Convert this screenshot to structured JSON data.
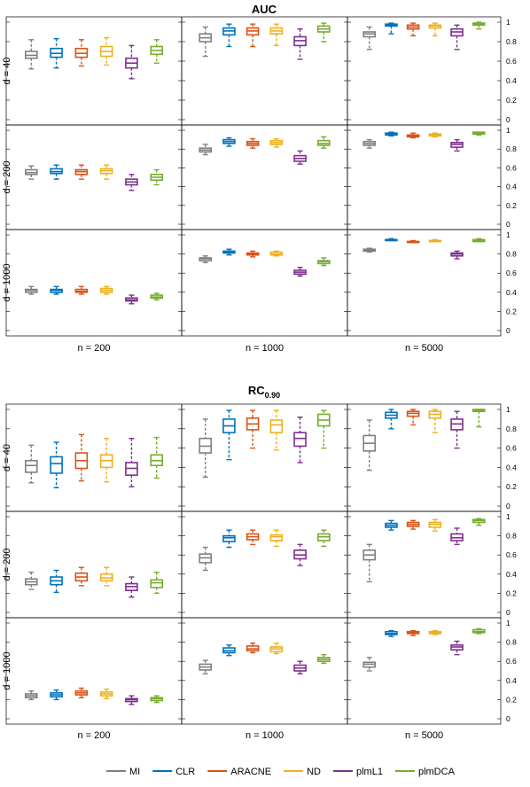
{
  "legend": [
    {
      "name": "MI",
      "color": "#808080"
    },
    {
      "name": "CLR",
      "color": "#0072bd"
    },
    {
      "name": "ARACNE",
      "color": "#d95319"
    },
    {
      "name": "ND",
      "color": "#edb120"
    },
    {
      "name": "plmL1",
      "color": "#7e2f8e"
    },
    {
      "name": "plmDCA",
      "color": "#77ac30"
    }
  ],
  "chart_data": [
    {
      "type": "box",
      "title": "AUC",
      "title_sub": "",
      "row_labels": [
        "d = 40",
        "d = 200",
        "d = 1000"
      ],
      "col_labels": [
        "n = 200",
        "n = 1000",
        "n = 5000"
      ],
      "ylim": [
        0,
        1
      ],
      "y_ticks": [
        "0",
        "0.2",
        "0.4",
        "0.6",
        "0.8",
        "1"
      ],
      "series": [
        "MI",
        "CLR",
        "ARACNE",
        "ND",
        "plmL1",
        "plmDCA"
      ],
      "cells": [
        [
          [
            [
              0.52,
              0.63,
              0.66,
              0.7,
              0.82
            ],
            [
              0.53,
              0.64,
              0.68,
              0.73,
              0.83
            ],
            [
              0.55,
              0.64,
              0.68,
              0.73,
              0.82
            ],
            [
              0.56,
              0.65,
              0.7,
              0.75,
              0.84
            ],
            [
              0.42,
              0.53,
              0.58,
              0.63,
              0.76
            ],
            [
              0.58,
              0.67,
              0.71,
              0.75,
              0.82
            ]
          ],
          [
            [
              0.65,
              0.8,
              0.84,
              0.88,
              0.95
            ],
            [
              0.75,
              0.87,
              0.91,
              0.94,
              0.98
            ],
            [
              0.75,
              0.87,
              0.91,
              0.94,
              0.98
            ],
            [
              0.76,
              0.88,
              0.91,
              0.94,
              0.98
            ],
            [
              0.62,
              0.76,
              0.81,
              0.85,
              0.93
            ],
            [
              0.8,
              0.9,
              0.93,
              0.96,
              0.99
            ]
          ],
          [
            [
              0.72,
              0.85,
              0.88,
              0.9,
              0.95
            ],
            [
              0.88,
              0.96,
              0.97,
              0.98,
              0.99
            ],
            [
              0.86,
              0.93,
              0.95,
              0.97,
              0.99
            ],
            [
              0.86,
              0.94,
              0.96,
              0.97,
              0.99
            ],
            [
              0.72,
              0.86,
              0.9,
              0.93,
              0.97
            ],
            [
              0.93,
              0.97,
              0.98,
              0.99,
              1.0
            ]
          ]
        ],
        [
          [
            [
              0.48,
              0.53,
              0.55,
              0.58,
              0.62
            ],
            [
              0.48,
              0.54,
              0.56,
              0.59,
              0.63
            ],
            [
              0.48,
              0.53,
              0.56,
              0.58,
              0.63
            ],
            [
              0.48,
              0.54,
              0.57,
              0.59,
              0.63
            ],
            [
              0.36,
              0.42,
              0.45,
              0.48,
              0.53
            ],
            [
              0.42,
              0.47,
              0.5,
              0.53,
              0.58
            ]
          ],
          [
            [
              0.74,
              0.77,
              0.79,
              0.81,
              0.85
            ],
            [
              0.83,
              0.86,
              0.88,
              0.9,
              0.92
            ],
            [
              0.81,
              0.84,
              0.86,
              0.88,
              0.91
            ],
            [
              0.82,
              0.85,
              0.87,
              0.89,
              0.91
            ],
            [
              0.64,
              0.67,
              0.7,
              0.73,
              0.78
            ],
            [
              0.81,
              0.84,
              0.86,
              0.89,
              0.93
            ]
          ],
          [
            [
              0.81,
              0.84,
              0.86,
              0.88,
              0.9
            ],
            [
              0.94,
              0.95,
              0.96,
              0.97,
              0.98
            ],
            [
              0.92,
              0.93,
              0.94,
              0.95,
              0.97
            ],
            [
              0.93,
              0.94,
              0.95,
              0.96,
              0.97
            ],
            [
              0.78,
              0.82,
              0.85,
              0.87,
              0.9
            ],
            [
              0.95,
              0.96,
              0.97,
              0.98,
              0.98
            ]
          ]
        ],
        [
          [
            [
              0.38,
              0.4,
              0.42,
              0.43,
              0.46
            ],
            [
              0.38,
              0.4,
              0.42,
              0.43,
              0.46
            ],
            [
              0.38,
              0.4,
              0.41,
              0.43,
              0.46
            ],
            [
              0.38,
              0.4,
              0.42,
              0.44,
              0.46
            ],
            [
              0.28,
              0.31,
              0.32,
              0.34,
              0.37
            ],
            [
              0.32,
              0.34,
              0.35,
              0.37,
              0.39
            ]
          ],
          [
            [
              0.71,
              0.73,
              0.75,
              0.76,
              0.78
            ],
            [
              0.79,
              0.81,
              0.82,
              0.83,
              0.85
            ],
            [
              0.77,
              0.79,
              0.8,
              0.81,
              0.83
            ],
            [
              0.78,
              0.79,
              0.8,
              0.82,
              0.83
            ],
            [
              0.57,
              0.59,
              0.61,
              0.63,
              0.66
            ],
            [
              0.68,
              0.7,
              0.72,
              0.73,
              0.76
            ]
          ],
          [
            [
              0.82,
              0.83,
              0.84,
              0.85,
              0.86
            ],
            [
              0.94,
              0.94,
              0.95,
              0.95,
              0.96
            ],
            [
              0.92,
              0.92,
              0.93,
              0.93,
              0.94
            ],
            [
              0.93,
              0.93,
              0.94,
              0.94,
              0.95
            ],
            [
              0.75,
              0.78,
              0.8,
              0.81,
              0.83
            ],
            [
              0.93,
              0.93,
              0.94,
              0.95,
              0.96
            ]
          ]
        ]
      ]
    },
    {
      "type": "box",
      "title": "RC",
      "title_sub": "0.90",
      "row_labels": [
        "d = 40",
        "d = 200",
        "d = 1000"
      ],
      "col_labels": [
        "n = 200",
        "n = 1000",
        "n = 5000"
      ],
      "ylim": [
        0,
        1
      ],
      "y_ticks": [
        "0",
        "0.2",
        "0.4",
        "0.6",
        "0.8",
        "1"
      ],
      "series": [
        "MI",
        "CLR",
        "ARACNE",
        "ND",
        "plmL1",
        "plmDCA"
      ],
      "cells": [
        [
          [
            [
              0.24,
              0.35,
              0.42,
              0.47,
              0.63
            ],
            [
              0.19,
              0.34,
              0.44,
              0.51,
              0.66
            ],
            [
              0.26,
              0.39,
              0.47,
              0.55,
              0.74
            ],
            [
              0.25,
              0.4,
              0.47,
              0.53,
              0.7
            ],
            [
              0.2,
              0.32,
              0.39,
              0.45,
              0.7
            ],
            [
              0.29,
              0.42,
              0.47,
              0.53,
              0.71
            ]
          ],
          [
            [
              0.3,
              0.55,
              0.62,
              0.7,
              0.9
            ],
            [
              0.48,
              0.76,
              0.83,
              0.9,
              0.99
            ],
            [
              0.6,
              0.79,
              0.85,
              0.91,
              0.99
            ],
            [
              0.58,
              0.76,
              0.84,
              0.89,
              0.99
            ],
            [
              0.45,
              0.62,
              0.7,
              0.76,
              0.92
            ],
            [
              0.6,
              0.83,
              0.89,
              0.95,
              0.99
            ]
          ],
          [
            [
              0.37,
              0.57,
              0.65,
              0.73,
              0.89
            ],
            [
              0.8,
              0.91,
              0.94,
              0.97,
              1.0
            ],
            [
              0.84,
              0.93,
              0.96,
              0.98,
              1.0
            ],
            [
              0.76,
              0.91,
              0.95,
              0.98,
              1.0
            ],
            [
              0.6,
              0.79,
              0.85,
              0.9,
              0.98
            ],
            [
              0.82,
              0.98,
              0.99,
              1.0,
              1.0
            ]
          ]
        ],
        [
          [
            [
              0.24,
              0.29,
              0.32,
              0.35,
              0.42
            ],
            [
              0.21,
              0.29,
              0.33,
              0.37,
              0.44
            ],
            [
              0.28,
              0.33,
              0.37,
              0.41,
              0.47
            ],
            [
              0.28,
              0.33,
              0.36,
              0.4,
              0.47
            ],
            [
              0.16,
              0.23,
              0.27,
              0.3,
              0.37
            ],
            [
              0.2,
              0.26,
              0.31,
              0.34,
              0.42
            ]
          ],
          [
            [
              0.44,
              0.52,
              0.57,
              0.61,
              0.68
            ],
            [
              0.68,
              0.74,
              0.78,
              0.8,
              0.86
            ],
            [
              0.71,
              0.76,
              0.79,
              0.82,
              0.86
            ],
            [
              0.69,
              0.75,
              0.79,
              0.81,
              0.86
            ],
            [
              0.49,
              0.56,
              0.6,
              0.65,
              0.71
            ],
            [
              0.69,
              0.75,
              0.79,
              0.82,
              0.86
            ]
          ],
          [
            [
              0.32,
              0.55,
              0.6,
              0.65,
              0.71
            ],
            [
              0.86,
              0.89,
              0.91,
              0.93,
              0.96
            ],
            [
              0.87,
              0.9,
              0.92,
              0.94,
              0.96
            ],
            [
              0.85,
              0.89,
              0.92,
              0.94,
              0.97
            ],
            [
              0.71,
              0.75,
              0.78,
              0.82,
              0.88
            ],
            [
              0.91,
              0.94,
              0.96,
              0.97,
              0.98
            ]
          ]
        ],
        [
          [
            [
              0.2,
              0.22,
              0.24,
              0.26,
              0.29
            ],
            [
              0.2,
              0.23,
              0.25,
              0.27,
              0.3
            ],
            [
              0.22,
              0.25,
              0.27,
              0.29,
              0.32
            ],
            [
              0.21,
              0.24,
              0.26,
              0.28,
              0.31
            ],
            [
              0.15,
              0.18,
              0.2,
              0.21,
              0.24
            ],
            [
              0.17,
              0.19,
              0.21,
              0.22,
              0.24
            ]
          ],
          [
            [
              0.47,
              0.51,
              0.54,
              0.57,
              0.61
            ],
            [
              0.66,
              0.69,
              0.71,
              0.74,
              0.77
            ],
            [
              0.69,
              0.71,
              0.73,
              0.76,
              0.79
            ],
            [
              0.68,
              0.7,
              0.73,
              0.75,
              0.79
            ],
            [
              0.47,
              0.5,
              0.53,
              0.56,
              0.6
            ],
            [
              0.58,
              0.6,
              0.62,
              0.64,
              0.67
            ]
          ],
          [
            [
              0.5,
              0.54,
              0.57,
              0.59,
              0.64
            ],
            [
              0.86,
              0.88,
              0.89,
              0.91,
              0.92
            ],
            [
              0.87,
              0.89,
              0.9,
              0.91,
              0.92
            ],
            [
              0.88,
              0.89,
              0.9,
              0.91,
              0.92
            ],
            [
              0.67,
              0.72,
              0.75,
              0.77,
              0.81
            ],
            [
              0.89,
              0.9,
              0.91,
              0.93,
              0.94
            ]
          ]
        ]
      ]
    }
  ]
}
